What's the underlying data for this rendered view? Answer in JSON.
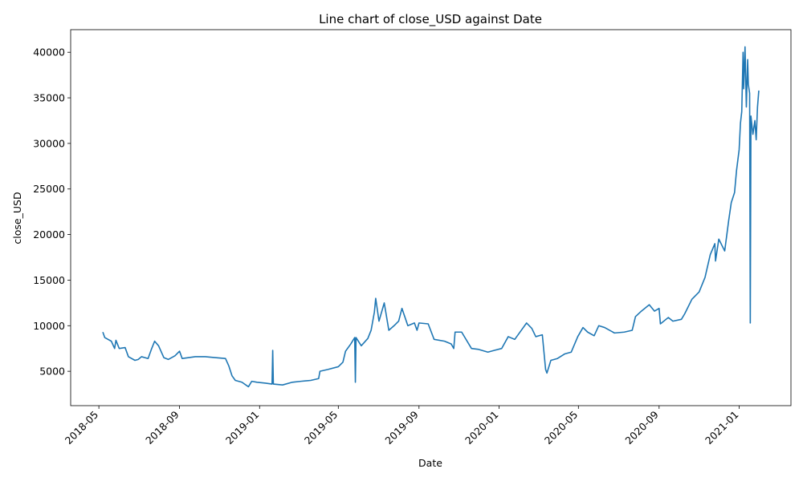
{
  "chart_data": {
    "type": "line",
    "title": "Line chart of close_USD against Date",
    "x_label": "Date",
    "y_label": "close_USD",
    "x": [
      "2018-05-07",
      "2018-05-10",
      "2018-05-20",
      "2018-05-25",
      "2018-05-27",
      "2018-06-01",
      "2018-06-10",
      "2018-06-15",
      "2018-06-25",
      "2018-06-30",
      "2018-07-05",
      "2018-07-15",
      "2018-07-20",
      "2018-07-25",
      "2018-07-31",
      "2018-08-08",
      "2018-08-15",
      "2018-08-25",
      "2018-09-01",
      "2018-09-05",
      "2018-09-15",
      "2018-09-25",
      "2018-10-10",
      "2018-10-25",
      "2018-11-10",
      "2018-11-15",
      "2018-11-20",
      "2018-11-25",
      "2018-12-05",
      "2018-12-15",
      "2018-12-20",
      "2018-12-28",
      "2019-01-10",
      "2019-01-20",
      "2019-01-21",
      "2019-01-22",
      "2019-02-05",
      "2019-02-20",
      "2019-03-05",
      "2019-03-20",
      "2019-04-01",
      "2019-04-03",
      "2019-04-15",
      "2019-05-01",
      "2019-05-08",
      "2019-05-12",
      "2019-05-20",
      "2019-05-26",
      "2019-05-27",
      "2019-05-28",
      "2019-06-05",
      "2019-06-15",
      "2019-06-20",
      "2019-06-25",
      "2019-06-27",
      "2019-07-02",
      "2019-07-10",
      "2019-07-17",
      "2019-07-25",
      "2019-08-01",
      "2019-08-06",
      "2019-08-15",
      "2019-08-25",
      "2019-08-29",
      "2019-09-01",
      "2019-09-15",
      "2019-09-24",
      "2019-10-10",
      "2019-10-20",
      "2019-10-24",
      "2019-10-26",
      "2019-11-05",
      "2019-11-20",
      "2019-12-01",
      "2019-12-15",
      "2019-12-25",
      "2020-01-05",
      "2020-01-15",
      "2020-01-25",
      "2020-02-05",
      "2020-02-12",
      "2020-02-20",
      "2020-02-26",
      "2020-03-07",
      "2020-03-12",
      "2020-03-14",
      "2020-03-20",
      "2020-03-30",
      "2020-04-10",
      "2020-04-20",
      "2020-04-30",
      "2020-05-08",
      "2020-05-15",
      "2020-05-25",
      "2020-06-01",
      "2020-06-10",
      "2020-06-25",
      "2020-07-10",
      "2020-07-22",
      "2020-07-27",
      "2020-08-05",
      "2020-08-17",
      "2020-08-25",
      "2020-09-01",
      "2020-09-03",
      "2020-09-15",
      "2020-09-22",
      "2020-10-05",
      "2020-10-10",
      "2020-10-21",
      "2020-11-01",
      "2020-11-10",
      "2020-11-18",
      "2020-11-25",
      "2020-11-26",
      "2020-12-01",
      "2020-12-10",
      "2020-12-16",
      "2020-12-20",
      "2020-12-25",
      "2020-12-28",
      "2021-01-01",
      "2021-01-03",
      "2021-01-05",
      "2021-01-07",
      "2021-01-08",
      "2021-01-10",
      "2021-01-12",
      "2021-01-14",
      "2021-01-15",
      "2021-01-17",
      "2021-01-18",
      "2021-01-19",
      "2021-01-22",
      "2021-01-25",
      "2021-01-27",
      "2021-01-29",
      "2021-01-31"
    ],
    "values": [
      9300,
      8700,
      8300,
      7500,
      8400,
      7500,
      7600,
      6600,
      6200,
      6300,
      6600,
      6400,
      7400,
      8300,
      7800,
      6500,
      6300,
      6700,
      7200,
      6400,
      6500,
      6600,
      6600,
      6500,
      6400,
      5600,
      4500,
      4000,
      3800,
      3300,
      3900,
      3800,
      3700,
      3600,
      7300,
      3600,
      3500,
      3800,
      3900,
      4000,
      4200,
      5000,
      5200,
      5500,
      6000,
      7200,
      8000,
      8700,
      3800,
      8700,
      7800,
      8600,
      9500,
      11500,
      13000,
      10500,
      12500,
      9500,
      10000,
      10500,
      11900,
      10000,
      10300,
      9500,
      10300,
      10200,
      8500,
      8300,
      8000,
      7500,
      9300,
      9300,
      7500,
      7400,
      7100,
      7300,
      7500,
      8800,
      8500,
      9600,
      10300,
      9700,
      8800,
      9000,
      5200,
      4800,
      6200,
      6400,
      6900,
      7100,
      8800,
      9800,
      9300,
      8900,
      10000,
      9800,
      9200,
      9300,
      9500,
      11000,
      11600,
      12300,
      11600,
      11900,
      10200,
      10900,
      10500,
      10700,
      11300,
      12900,
      13700,
      15300,
      17800,
      19000,
      17100,
      19500,
      18200,
      21500,
      23500,
      24600,
      27000,
      29300,
      32200,
      33500,
      40000,
      36000,
      40600,
      34000,
      39200,
      36500,
      35500,
      10300,
      33000,
      31000,
      32500,
      30400,
      34000,
      35800
    ],
    "color": "#1f77b4",
    "xlim": [
      "2018-03-19",
      "2021-03-21"
    ],
    "xticks": [
      {
        "value": "2018-05-01",
        "label": "2018-05"
      },
      {
        "value": "2018-09-01",
        "label": "2018-09"
      },
      {
        "value": "2019-01-01",
        "label": "2019-01"
      },
      {
        "value": "2019-05-01",
        "label": "2019-05"
      },
      {
        "value": "2019-09-01",
        "label": "2019-09"
      },
      {
        "value": "2020-01-01",
        "label": "2020-01"
      },
      {
        "value": "2020-05-01",
        "label": "2020-05"
      },
      {
        "value": "2020-09-01",
        "label": "2020-09"
      },
      {
        "value": "2021-01-01",
        "label": "2021-01"
      }
    ],
    "ylim": [
      1230,
      42480
    ],
    "yticks": [
      5000,
      10000,
      15000,
      20000,
      25000,
      30000,
      35000,
      40000
    ]
  }
}
